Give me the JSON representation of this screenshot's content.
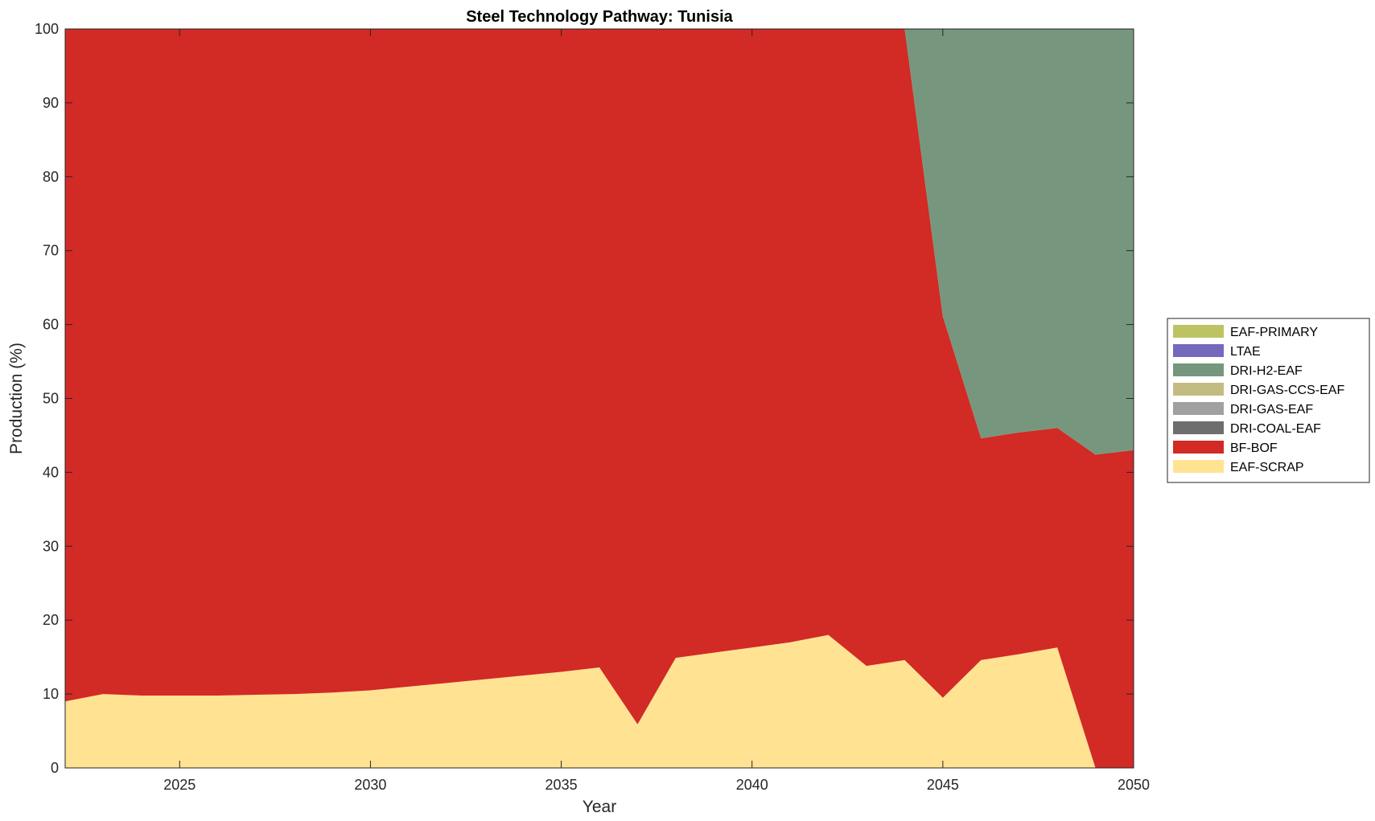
{
  "chart_data": {
    "type": "area",
    "stacked": true,
    "title": "Steel Technology Pathway: Tunisia",
    "xlabel": "Year",
    "ylabel": "Production (%)",
    "xlim": [
      2022,
      2050
    ],
    "ylim": [
      0,
      100
    ],
    "xticks": [
      2025,
      2030,
      2035,
      2040,
      2045,
      2050
    ],
    "yticks": [
      0,
      10,
      20,
      30,
      40,
      50,
      60,
      70,
      80,
      90,
      100
    ],
    "grid": false,
    "legend_position": "right",
    "x": [
      2022,
      2023,
      2024,
      2025,
      2026,
      2027,
      2028,
      2029,
      2030,
      2031,
      2032,
      2033,
      2034,
      2035,
      2036,
      2037,
      2038,
      2039,
      2040,
      2041,
      2042,
      2043,
      2044,
      2045,
      2046,
      2047,
      2048,
      2049,
      2050
    ],
    "series": [
      {
        "name": "EAF-SCRAP",
        "color": "#FFE393",
        "values": [
          9.0,
          10.0,
          9.8,
          9.8,
          9.8,
          9.9,
          10.0,
          10.2,
          10.5,
          11.0,
          11.5,
          12.0,
          12.5,
          13.0,
          13.6,
          5.9,
          14.9,
          15.6,
          16.3,
          17.0,
          18.0,
          13.8,
          14.6,
          9.5,
          14.6,
          15.4,
          16.3,
          0.0,
          0.0
        ]
      },
      {
        "name": "BF-BOF",
        "color": "#D22A24",
        "values": [
          91.0,
          90.0,
          90.2,
          90.2,
          90.2,
          90.1,
          90.0,
          89.8,
          89.5,
          89.0,
          88.5,
          88.0,
          87.5,
          87.0,
          86.4,
          94.1,
          85.1,
          84.4,
          83.7,
          83.0,
          82.0,
          86.2,
          85.4,
          51.6,
          30.0,
          30.0,
          29.7,
          42.4,
          43.0
        ]
      },
      {
        "name": "DRI-COAL-EAF",
        "color": "#6E6E6E",
        "values": [
          0,
          0,
          0,
          0,
          0,
          0,
          0,
          0,
          0,
          0,
          0,
          0,
          0,
          0,
          0,
          0,
          0,
          0,
          0,
          0,
          0,
          0,
          0,
          0,
          0,
          0,
          0,
          0,
          0
        ]
      },
      {
        "name": "DRI-GAS-EAF",
        "color": "#A0A0A0",
        "values": [
          0,
          0,
          0,
          0,
          0,
          0,
          0,
          0,
          0,
          0,
          0,
          0,
          0,
          0,
          0,
          0,
          0,
          0,
          0,
          0,
          0,
          0,
          0,
          0,
          0,
          0,
          0,
          0,
          0
        ]
      },
      {
        "name": "DRI-GAS-CCS-EAF",
        "color": "#C3BC82",
        "values": [
          0,
          0,
          0,
          0,
          0,
          0,
          0,
          0,
          0,
          0,
          0,
          0,
          0,
          0,
          0,
          0,
          0,
          0,
          0,
          0,
          0,
          0,
          0,
          0,
          0,
          0,
          0,
          0,
          0
        ]
      },
      {
        "name": "DRI-H2-EAF",
        "color": "#76977D",
        "values": [
          0,
          0,
          0,
          0,
          0,
          0,
          0,
          0,
          0,
          0,
          0,
          0,
          0,
          0,
          0,
          0,
          0,
          0,
          0,
          0,
          0,
          0,
          0,
          38.9,
          55.4,
          54.6,
          54.0,
          57.6,
          57.0
        ]
      },
      {
        "name": "LTAE",
        "color": "#7469BC",
        "values": [
          0,
          0,
          0,
          0,
          0,
          0,
          0,
          0,
          0,
          0,
          0,
          0,
          0,
          0,
          0,
          0,
          0,
          0,
          0,
          0,
          0,
          0,
          0,
          0,
          0,
          0,
          0,
          0,
          0
        ]
      },
      {
        "name": "EAF-PRIMARY",
        "color": "#BDC362",
        "values": [
          0,
          0,
          0,
          0,
          0,
          0,
          0,
          0,
          0,
          0,
          0,
          0,
          0,
          0,
          0,
          0,
          0,
          0,
          0,
          0,
          0,
          0,
          0,
          0,
          0,
          0,
          0,
          0,
          0
        ]
      }
    ],
    "legend_order": [
      "EAF-PRIMARY",
      "LTAE",
      "DRI-H2-EAF",
      "DRI-GAS-CCS-EAF",
      "DRI-GAS-EAF",
      "DRI-COAL-EAF",
      "BF-BOF",
      "EAF-SCRAP"
    ]
  }
}
